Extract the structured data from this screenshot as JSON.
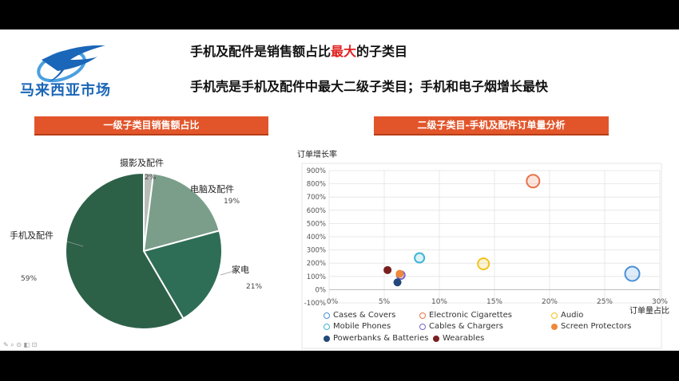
{
  "logo": {
    "text": "马来西亚市场",
    "icon": "bird-logo-icon"
  },
  "headline1": {
    "pre": "手机及配件是销售额占比",
    "highlight": "最大",
    "post": "的子类目"
  },
  "headline2": "手机壳是手机及配件中最大二级子类目；手机和电子烟增长最快",
  "colors": {
    "banner": "#e2552a",
    "highlight": "#e02020",
    "pie": [
      "#b8bcb9",
      "#7a9e8a",
      "#2f6e56",
      "#2c6148"
    ]
  },
  "chart_data": [
    {
      "type": "pie",
      "title": "一级子类目销售额占比",
      "slices": [
        {
          "label": "摄影及配件",
          "value": 2,
          "display": "2%"
        },
        {
          "label": "电脑及配件",
          "value": 19,
          "display": "19%"
        },
        {
          "label": "家电",
          "value": 21,
          "display": "21%"
        },
        {
          "label": "手机及配件",
          "value": 59,
          "display": "59%"
        }
      ]
    },
    {
      "type": "scatter",
      "title": "二级子类目-手机及配件订单量分析",
      "xlabel": "订单量占比",
      "ylabel": "订单增长率",
      "xlim": [
        0,
        30
      ],
      "ylim": [
        -100,
        900
      ],
      "xticks": [
        "0%",
        "5%",
        "10%",
        "15%",
        "20%",
        "25%",
        "30%"
      ],
      "yticks": [
        "-100%",
        "0%",
        "100%",
        "200%",
        "300%",
        "400%",
        "500%",
        "600%",
        "700%",
        "800%",
        "900%"
      ],
      "grid": true,
      "legend_position": "bottom",
      "series": [
        {
          "name": "Cases & Covers",
          "color": "#4a90d9",
          "filled": false,
          "points": [
            {
              "x": 27.5,
              "y": 120,
              "size": 9
            }
          ]
        },
        {
          "name": "Electronic Cigarettes",
          "color": "#e8734a",
          "filled": false,
          "points": [
            {
              "x": 18.5,
              "y": 820,
              "size": 8
            }
          ]
        },
        {
          "name": "Audio",
          "color": "#f2c21b",
          "filled": false,
          "points": [
            {
              "x": 14,
              "y": 195,
              "size": 7
            }
          ]
        },
        {
          "name": "Mobile Phones",
          "color": "#3db5d6",
          "filled": false,
          "points": [
            {
              "x": 8.2,
              "y": 240,
              "size": 6
            }
          ]
        },
        {
          "name": "Cables & Chargers",
          "color": "#7b62c9",
          "filled": false,
          "points": [
            {
              "x": 6.5,
              "y": 110,
              "size": 5
            }
          ]
        },
        {
          "name": "Screen Protectors",
          "color": "#f0883a",
          "filled": true,
          "points": [
            {
              "x": 6.4,
              "y": 120,
              "size": 5
            }
          ]
        },
        {
          "name": "Powerbanks & Batteries",
          "color": "#23497a",
          "filled": true,
          "points": [
            {
              "x": 6.2,
              "y": 55,
              "size": 5
            }
          ]
        },
        {
          "name": "Wearables",
          "color": "#7a1f1f",
          "filled": true,
          "points": [
            {
              "x": 5.3,
              "y": 148,
              "size": 5
            }
          ]
        }
      ]
    }
  ]
}
